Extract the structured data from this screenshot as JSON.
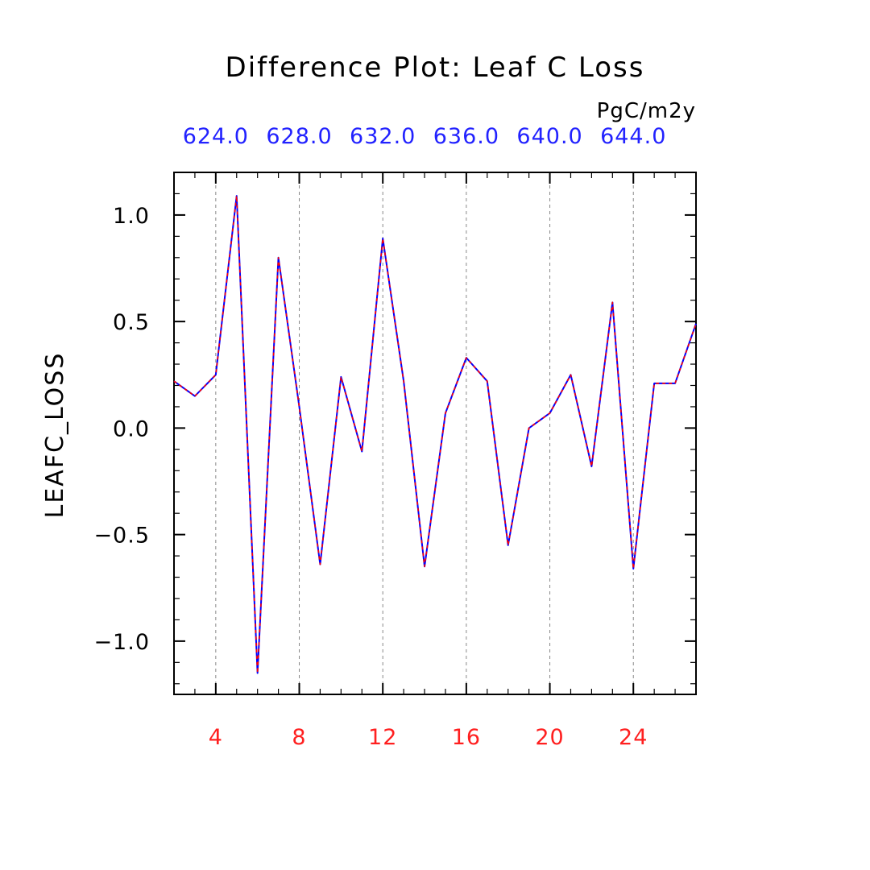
{
  "chart_data": {
    "type": "line",
    "title": "Difference Plot: Leaf C Loss",
    "units": "PgC/m2y",
    "xlabel": "",
    "ylabel": "LEAFC_LOSS",
    "xlim": [
      2,
      27
    ],
    "ylim": [
      -1.25,
      1.2
    ],
    "grid": "vertical dashed",
    "x_bottom_ticks": [
      4,
      8,
      12,
      16,
      20,
      24
    ],
    "x_bottom_tick_labels": [
      "4",
      "8",
      "12",
      "16",
      "20",
      "24"
    ],
    "x_top_tick_labels": [
      "624.0",
      "628.0",
      "632.0",
      "636.0",
      "640.0",
      "644.0"
    ],
    "y_ticks": [
      -1.0,
      -0.5,
      0.0,
      0.5,
      1.0
    ],
    "y_tick_labels": [
      "−1.0",
      "−0.5",
      "0.0",
      "0.5",
      "1.0"
    ],
    "x": [
      2,
      3,
      4,
      5,
      6,
      7,
      8,
      9,
      10,
      11,
      12,
      13,
      14,
      15,
      16,
      17,
      18,
      19,
      20,
      21,
      22,
      23,
      24,
      25,
      26,
      27
    ],
    "series": [
      {
        "color": "#0000ff",
        "values": [
          0.22,
          0.15,
          0.25,
          1.09,
          -1.15,
          0.8,
          0.1,
          -0.64,
          0.24,
          -0.11,
          0.89,
          0.22,
          -0.65,
          0.07,
          0.33,
          0.22,
          -0.55,
          0.0,
          0.07,
          0.25,
          -0.18,
          0.59,
          -0.66,
          0.21,
          0.21,
          0.49
        ]
      },
      {
        "color": "#ff0000",
        "style": "dashed",
        "values": [
          0.22,
          0.15,
          0.25,
          1.09,
          -1.15,
          0.8,
          0.1,
          -0.64,
          0.24,
          -0.11,
          0.89,
          0.22,
          -0.65,
          0.07,
          0.33,
          0.22,
          -0.55,
          0.0,
          0.07,
          0.25,
          -0.18,
          0.59,
          -0.66,
          0.21,
          0.21,
          0.49
        ]
      }
    ],
    "colors": {
      "top_tick_labels": "#2222ff",
      "bottom_tick_labels": "#ff2020",
      "axes": "#000000",
      "grid": "#888888"
    }
  }
}
